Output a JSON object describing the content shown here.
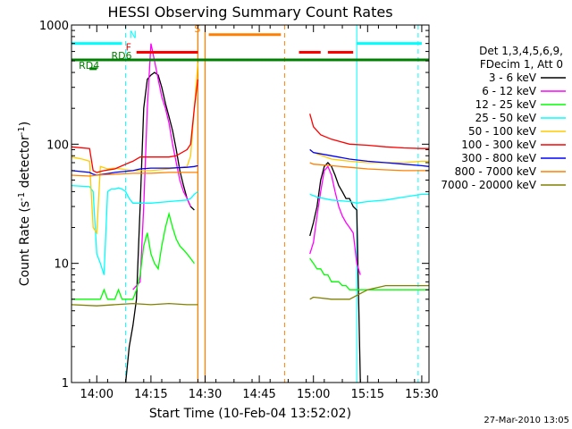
{
  "chart_data": {
    "type": "line",
    "title": "HESSI Observing Summary Count Rates",
    "xlabel": "Start Time (10-Feb-04 13:52:02)",
    "ylabel_parts": [
      "Count Rate (s",
      "-1",
      " detector",
      "-1",
      ")"
    ],
    "yscale": "log",
    "ylim": [
      1,
      1000
    ],
    "xlim": [
      "13:53",
      "15:32"
    ],
    "x_ticks": [
      "14:00",
      "14:15",
      "14:30",
      "14:45",
      "15:00",
      "15:15",
      "15:30"
    ],
    "y_ticks": [
      "1",
      "10",
      "100",
      "1000"
    ],
    "legend_header": [
      "Det 1,3,4,5,6,9,",
      "FDecim 1, Att 0"
    ],
    "footer": "27-Mar-2010 13:05",
    "legend_position": "right",
    "series": [
      {
        "name": "3 - 6 keV",
        "color": "#000000",
        "points": [
          [
            "14:08",
            1
          ],
          [
            "14:09",
            2
          ],
          [
            "14:10",
            3
          ],
          [
            "14:11",
            5
          ],
          [
            "14:12",
            30
          ],
          [
            "14:13",
            200
          ],
          [
            "14:14",
            350
          ],
          [
            "14:15",
            380
          ],
          [
            "14:16",
            400
          ],
          [
            "14:17",
            380
          ],
          [
            "14:18",
            300
          ],
          [
            "14:19",
            220
          ],
          [
            "14:20",
            170
          ],
          [
            "14:21",
            130
          ],
          [
            "14:22",
            90
          ],
          [
            "14:23",
            60
          ],
          [
            "14:24",
            45
          ],
          [
            "14:25",
            35
          ],
          [
            "14:26",
            30
          ],
          [
            "14:27",
            28
          ]
        ],
        "points2": [
          [
            "14:59",
            17
          ],
          [
            "15:00",
            22
          ],
          [
            "15:01",
            30
          ],
          [
            "15:02",
            50
          ],
          [
            "15:03",
            65
          ],
          [
            "15:04",
            70
          ],
          [
            "15:05",
            65
          ],
          [
            "15:06",
            55
          ],
          [
            "15:07",
            45
          ],
          [
            "15:08",
            40
          ],
          [
            "15:09",
            35
          ],
          [
            "15:10",
            35
          ],
          [
            "15:11",
            30
          ],
          [
            "15:12",
            28
          ],
          [
            "15:13",
            1
          ]
        ]
      },
      {
        "name": "6 - 12 keV",
        "color": "#ff00ff",
        "points": [
          [
            "14:10",
            6
          ],
          [
            "14:11",
            6.5
          ],
          [
            "14:12",
            7
          ],
          [
            "14:13",
            30
          ],
          [
            "14:14",
            200
          ],
          [
            "14:15",
            700
          ],
          [
            "14:16",
            500
          ],
          [
            "14:17",
            350
          ],
          [
            "14:18",
            250
          ],
          [
            "14:19",
            200
          ],
          [
            "14:20",
            150
          ],
          [
            "14:21",
            100
          ],
          [
            "14:22",
            70
          ],
          [
            "14:23",
            50
          ],
          [
            "14:24",
            40
          ],
          [
            "14:25",
            35
          ],
          [
            "14:26",
            30
          ]
        ],
        "points2": [
          [
            "14:59",
            12
          ],
          [
            "15:00",
            15
          ],
          [
            "15:01",
            25
          ],
          [
            "15:02",
            40
          ],
          [
            "15:03",
            60
          ],
          [
            "15:04",
            65
          ],
          [
            "15:05",
            55
          ],
          [
            "15:06",
            40
          ],
          [
            "15:07",
            30
          ],
          [
            "15:08",
            25
          ],
          [
            "15:09",
            22
          ],
          [
            "15:10",
            20
          ],
          [
            "15:11",
            18
          ],
          [
            "15:12",
            10
          ],
          [
            "15:13",
            8
          ]
        ]
      },
      {
        "name": "12 - 25 keV",
        "color": "#00ff00",
        "points": [
          [
            "13:53",
            5
          ],
          [
            "14:00",
            5
          ],
          [
            "14:01",
            5
          ],
          [
            "14:02",
            6
          ],
          [
            "14:03",
            5
          ],
          [
            "14:04",
            5
          ],
          [
            "14:05",
            5
          ],
          [
            "14:06",
            6
          ],
          [
            "14:07",
            5
          ],
          [
            "14:08",
            5
          ],
          [
            "14:09",
            5
          ],
          [
            "14:10",
            5
          ],
          [
            "14:11",
            6
          ],
          [
            "14:12",
            8
          ],
          [
            "14:13",
            14
          ],
          [
            "14:14",
            18
          ],
          [
            "14:15",
            12
          ],
          [
            "14:16",
            10
          ],
          [
            "14:17",
            9
          ],
          [
            "14:18",
            14
          ],
          [
            "14:19",
            20
          ],
          [
            "14:20",
            26
          ],
          [
            "14:21",
            20
          ],
          [
            "14:22",
            16
          ],
          [
            "14:23",
            14
          ],
          [
            "14:24",
            13
          ],
          [
            "14:25",
            12
          ],
          [
            "14:26",
            11
          ],
          [
            "14:27",
            10
          ]
        ],
        "points2": [
          [
            "14:59",
            11
          ],
          [
            "15:00",
            10
          ],
          [
            "15:01",
            9
          ],
          [
            "15:02",
            9
          ],
          [
            "15:03",
            8
          ],
          [
            "15:04",
            8
          ],
          [
            "15:05",
            7
          ],
          [
            "15:06",
            7
          ],
          [
            "15:07",
            7
          ],
          [
            "15:08",
            6.5
          ],
          [
            "15:09",
            6.5
          ],
          [
            "15:10",
            6
          ],
          [
            "15:11",
            6
          ],
          [
            "15:12",
            6
          ],
          [
            "15:15",
            6
          ],
          [
            "15:20",
            6
          ],
          [
            "15:25",
            6
          ],
          [
            "15:32",
            6
          ]
        ]
      },
      {
        "name": "25 - 50 keV",
        "color": "#00ffff",
        "points": [
          [
            "13:53",
            45
          ],
          [
            "13:58",
            44
          ],
          [
            "13:59",
            40
          ],
          [
            "14:00",
            12
          ],
          [
            "14:01",
            10
          ],
          [
            "14:02",
            8
          ],
          [
            "14:03",
            40
          ],
          [
            "14:04",
            42
          ],
          [
            "14:05",
            42
          ],
          [
            "14:06",
            43
          ],
          [
            "14:07",
            42
          ],
          [
            "14:08",
            40
          ],
          [
            "14:09",
            35
          ],
          [
            "14:10",
            32
          ],
          [
            "14:15",
            32
          ],
          [
            "14:20",
            33
          ],
          [
            "14:25",
            34
          ],
          [
            "14:26",
            35
          ],
          [
            "14:27",
            38
          ],
          [
            "14:28",
            40
          ]
        ],
        "points2": [
          [
            "14:59",
            38
          ],
          [
            "15:00",
            37
          ],
          [
            "15:01",
            36
          ],
          [
            "15:05",
            34
          ],
          [
            "15:10",
            33
          ],
          [
            "15:12",
            32
          ],
          [
            "15:15",
            33
          ],
          [
            "15:20",
            34
          ],
          [
            "15:25",
            36
          ],
          [
            "15:30",
            38
          ],
          [
            "15:32",
            38
          ]
        ]
      },
      {
        "name": "50 - 100 keV",
        "color": "#ffcc00",
        "points": [
          [
            "13:53",
            78
          ],
          [
            "13:56",
            75
          ],
          [
            "13:58",
            72
          ],
          [
            "13:59",
            20
          ],
          [
            "14:00",
            18
          ],
          [
            "14:01",
            65
          ],
          [
            "14:03",
            62
          ],
          [
            "14:05",
            63
          ],
          [
            "14:10",
            60
          ],
          [
            "14:15",
            60
          ],
          [
            "14:20",
            62
          ],
          [
            "14:25",
            65
          ],
          [
            "14:26",
            80
          ],
          [
            "14:27",
            200
          ],
          [
            "14:28",
            480
          ]
        ],
        "points2": [
          [
            "14:59",
            90
          ],
          [
            "15:00",
            85
          ],
          [
            "15:05",
            75
          ],
          [
            "15:10",
            72
          ],
          [
            "15:15",
            70
          ],
          [
            "15:20",
            70
          ],
          [
            "15:25",
            70
          ],
          [
            "15:30",
            72
          ],
          [
            "15:32",
            72
          ]
        ]
      },
      {
        "name": "100 - 300 keV",
        "color": "#ff0000",
        "points": [
          [
            "13:53",
            95
          ],
          [
            "13:58",
            92
          ],
          [
            "13:59",
            60
          ],
          [
            "14:00",
            58
          ],
          [
            "14:02",
            60
          ],
          [
            "14:05",
            62
          ],
          [
            "14:09",
            70
          ],
          [
            "14:10",
            72
          ],
          [
            "14:12",
            78
          ],
          [
            "14:15",
            78
          ],
          [
            "14:20",
            78
          ],
          [
            "14:22",
            80
          ],
          [
            "14:25",
            90
          ],
          [
            "14:26",
            100
          ],
          [
            "14:27",
            200
          ],
          [
            "14:28",
            350
          ]
        ],
        "points2": [
          [
            "14:59",
            180
          ],
          [
            "15:00",
            140
          ],
          [
            "15:02",
            120
          ],
          [
            "15:05",
            110
          ],
          [
            "15:10",
            100
          ],
          [
            "15:15",
            98
          ],
          [
            "15:20",
            95
          ],
          [
            "15:25",
            93
          ],
          [
            "15:30",
            92
          ],
          [
            "15:32",
            92
          ]
        ]
      },
      {
        "name": "300 - 800 keV",
        "color": "#0000ff",
        "points": [
          [
            "13:53",
            60
          ],
          [
            "13:58",
            58
          ],
          [
            "13:59",
            56
          ],
          [
            "14:00",
            55
          ],
          [
            "14:05",
            58
          ],
          [
            "14:10",
            60
          ],
          [
            "14:12",
            62
          ],
          [
            "14:15",
            63
          ],
          [
            "14:20",
            63
          ],
          [
            "14:25",
            64
          ],
          [
            "14:27",
            65
          ],
          [
            "14:28",
            66
          ]
        ],
        "points2": [
          [
            "14:59",
            90
          ],
          [
            "15:00",
            85
          ],
          [
            "15:05",
            80
          ],
          [
            "15:10",
            75
          ],
          [
            "15:15",
            72
          ],
          [
            "15:20",
            70
          ],
          [
            "15:25",
            68
          ],
          [
            "15:30",
            66
          ],
          [
            "15:32",
            65
          ]
        ]
      },
      {
        "name": "800 - 7000 keV",
        "color": "#ff8000",
        "points": [
          [
            "13:53",
            55
          ],
          [
            "13:58",
            54
          ],
          [
            "14:00",
            55
          ],
          [
            "14:05",
            56
          ],
          [
            "14:10",
            57
          ],
          [
            "14:15",
            57
          ],
          [
            "14:20",
            58
          ],
          [
            "14:25",
            58
          ],
          [
            "14:28",
            58
          ]
        ],
        "points2": [
          [
            "14:59",
            70
          ],
          [
            "15:00",
            68
          ],
          [
            "15:05",
            66
          ],
          [
            "15:10",
            64
          ],
          [
            "15:15",
            62
          ],
          [
            "15:20",
            61
          ],
          [
            "15:25",
            60
          ],
          [
            "15:30",
            60
          ],
          [
            "15:32",
            60
          ]
        ]
      },
      {
        "name": "7000 - 20000 keV",
        "color": "#808000",
        "points": [
          [
            "13:53",
            4.5
          ],
          [
            "14:00",
            4.4
          ],
          [
            "14:05",
            4.5
          ],
          [
            "14:10",
            4.6
          ],
          [
            "14:15",
            4.5
          ],
          [
            "14:20",
            4.6
          ],
          [
            "14:25",
            4.5
          ],
          [
            "14:28",
            4.5
          ]
        ],
        "points2": [
          [
            "14:59",
            5
          ],
          [
            "15:00",
            5.2
          ],
          [
            "15:05",
            5
          ],
          [
            "15:10",
            5
          ],
          [
            "15:15",
            6
          ],
          [
            "15:20",
            6.5
          ],
          [
            "15:25",
            6.5
          ],
          [
            "15:30",
            6.5
          ],
          [
            "15:32",
            6.5
          ]
        ]
      }
    ],
    "markers": {
      "cyan_attn_bars": [
        [
          "13:53",
          "14:07"
        ],
        [
          "15:12",
          "15:30"
        ]
      ],
      "red_saa_bars": [
        [
          "14:11",
          "14:28"
        ],
        [
          "14:56",
          "15:02"
        ],
        [
          "15:04",
          "15:11"
        ]
      ],
      "orange_bar": [
        "14:31",
        "14:51"
      ],
      "green_bar": [
        "13:53",
        "15:32"
      ],
      "green_rd4_bar": [
        "13:58",
        "14:00"
      ],
      "labels": {
        "N": "N",
        "F": "F",
        "S": "S",
        "RD6": "RD6",
        "RD4": "RD4"
      },
      "orange_solid_lines": [
        "14:28",
        "14:30"
      ],
      "orange_dashed_lines": [
        "14:52"
      ],
      "cyan_dashed_lines": [
        "14:08",
        "15:29"
      ],
      "cyan_solid_lines": [
        "15:12"
      ]
    }
  }
}
